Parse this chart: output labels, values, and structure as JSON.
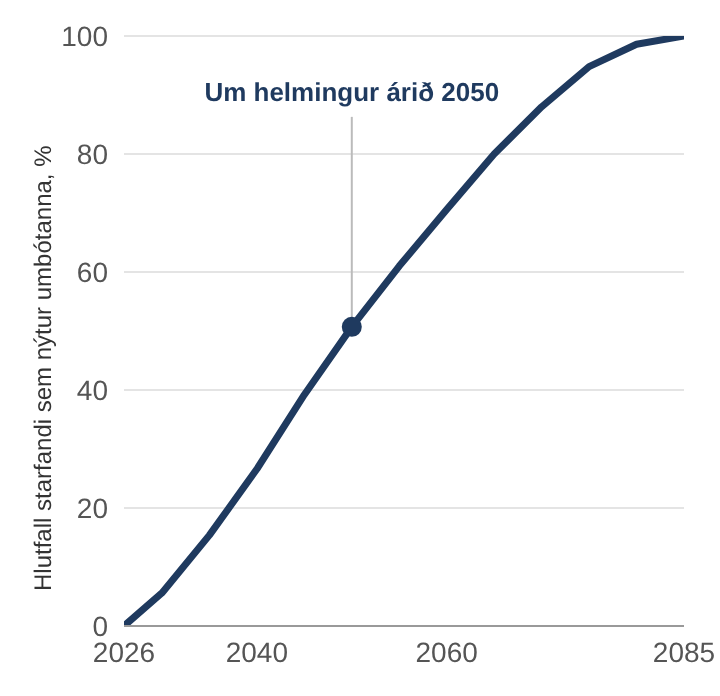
{
  "chart_data": {
    "type": "line",
    "ylabel": "Hlutfall starfandi sem nýtur umbótanna, %",
    "x": [
      2026,
      2030,
      2035,
      2040,
      2045,
      2050,
      2055,
      2060,
      2065,
      2070,
      2075,
      2080,
      2085
    ],
    "series": [
      {
        "color": "#1f3a5f",
        "values": [
          0,
          5.6,
          15.4,
          26.6,
          39.2,
          50.7,
          61,
          70.6,
          80,
          88,
          94.8,
          98.6,
          100
        ]
      }
    ],
    "xlim": [
      2026,
      2085
    ],
    "xticks": [
      2026,
      2040,
      2060,
      2085
    ],
    "ylim": [
      0,
      100
    ],
    "yticks": [
      0,
      20,
      40,
      60,
      80,
      100
    ],
    "grid": "y",
    "marker": "none",
    "line_style": "solid",
    "annotations": [
      {
        "text": "Um helmingur árið 2050",
        "x": 2050,
        "y": 50.7
      }
    ]
  }
}
